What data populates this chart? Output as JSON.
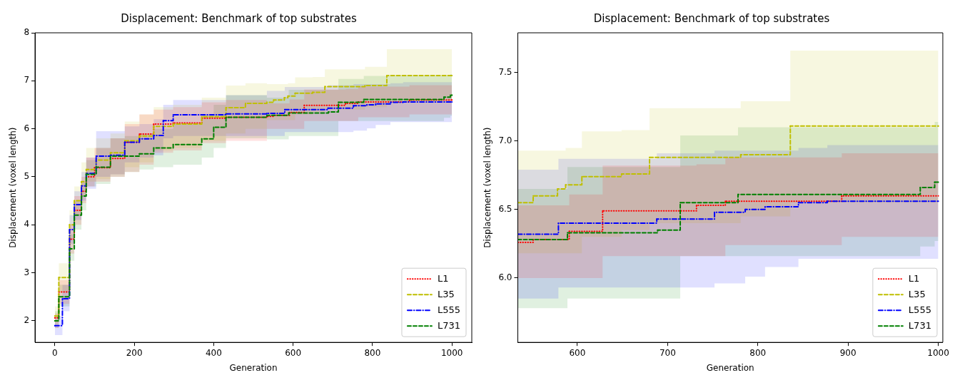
{
  "chart_data": [
    {
      "type": "step",
      "title": "Displacement: Benchmark of top substrates",
      "xlabel": "Generation",
      "ylabel": "Displacement (voxel length)",
      "xlim": [
        -50,
        1050
      ],
      "ylim": [
        1.55,
        8
      ],
      "xticks": [
        0,
        200,
        400,
        600,
        800,
        1000
      ],
      "yticks": [
        2,
        3,
        4,
        5,
        6,
        7,
        8
      ],
      "grid": false,
      "legend": "bottom right",
      "series": [
        {
          "name": "L1",
          "color": "#ff0000",
          "line_style": "dotted",
          "x": [
            0,
            10,
            37,
            49,
            67,
            79,
            100,
            140,
            176,
            213,
            249,
            298,
            370,
            431,
            534,
            551,
            591,
            628,
            732,
            764,
            893,
            1000
          ],
          "values": [
            2.06,
            2.6,
            3.7,
            4.3,
            4.7,
            5.0,
            5.19,
            5.38,
            5.72,
            5.89,
            6.1,
            6.12,
            6.22,
            6.24,
            6.26,
            6.28,
            6.34,
            6.49,
            6.53,
            6.56,
            6.6,
            6.6
          ],
          "lower": [
            1.85,
            2.35,
            3.4,
            4.0,
            4.45,
            4.8,
            4.9,
            5.0,
            5.1,
            5.25,
            5.5,
            5.55,
            5.7,
            5.75,
            6.0,
            6.0,
            6.0,
            6.16,
            6.16,
            6.24,
            6.3,
            6.3
          ],
          "upper": [
            2.15,
            2.85,
            4.0,
            4.6,
            5.0,
            5.4,
            5.6,
            5.8,
            6.1,
            6.3,
            6.4,
            6.45,
            6.55,
            6.6,
            6.53,
            6.53,
            6.61,
            6.82,
            6.83,
            6.88,
            6.91,
            6.91
          ]
        },
        {
          "name": "L35",
          "color": "#bfbf00",
          "line_style": "dashed",
          "x": [
            0,
            10,
            37,
            49,
            67,
            79,
            104,
            140,
            176,
            213,
            249,
            298,
            370,
            431,
            480,
            534,
            551,
            578,
            587,
            605,
            649,
            680,
            781,
            836,
            1000
          ],
          "values": [
            2.1,
            2.9,
            4.0,
            4.5,
            4.9,
            5.15,
            5.35,
            5.5,
            5.75,
            5.85,
            6.05,
            6.1,
            6.25,
            6.44,
            6.53,
            6.55,
            6.6,
            6.65,
            6.68,
            6.74,
            6.76,
            6.88,
            6.9,
            7.11,
            7.11
          ],
          "lower": [
            1.95,
            2.6,
            3.7,
            4.2,
            4.6,
            4.9,
            4.95,
            5.05,
            5.2,
            5.3,
            5.55,
            5.6,
            5.75,
            5.9,
            6.0,
            6.18,
            6.18,
            6.18,
            6.18,
            6.3,
            6.35,
            6.4,
            6.45,
            6.55,
            6.55
          ],
          "upper": [
            2.3,
            3.2,
            4.3,
            4.8,
            5.3,
            5.6,
            5.8,
            5.9,
            6.15,
            6.3,
            6.45,
            6.5,
            6.65,
            6.9,
            6.95,
            6.93,
            6.93,
            6.93,
            6.95,
            7.07,
            7.08,
            7.24,
            7.29,
            7.66,
            7.66
          ]
        },
        {
          "name": "L555",
          "color": "#0000ff",
          "line_style": "dashdot",
          "x": [
            0,
            19,
            37,
            49,
            67,
            79,
            104,
            140,
            176,
            213,
            249,
            273,
            298,
            431,
            534,
            579,
            688,
            752,
            786,
            808,
            845,
            877,
            1000
          ],
          "values": [
            1.9,
            2.46,
            3.9,
            4.42,
            4.81,
            5.07,
            5.43,
            5.45,
            5.72,
            5.79,
            5.86,
            6.17,
            6.29,
            6.31,
            6.32,
            6.4,
            6.43,
            6.48,
            6.5,
            6.52,
            6.55,
            6.56,
            6.56
          ],
          "lower": [
            1.7,
            2.2,
            3.6,
            4.1,
            4.5,
            4.75,
            5.0,
            5.05,
            5.3,
            5.4,
            5.45,
            5.8,
            5.85,
            5.85,
            5.85,
            5.93,
            5.93,
            5.96,
            6.01,
            6.08,
            6.14,
            6.14,
            6.14
          ],
          "upper": [
            2.1,
            2.75,
            4.2,
            4.7,
            5.1,
            5.4,
            5.95,
            5.95,
            6.05,
            6.1,
            6.2,
            6.5,
            6.6,
            6.7,
            6.79,
            6.87,
            6.91,
            6.93,
            6.93,
            6.93,
            6.95,
            6.97,
            6.97
          ]
        },
        {
          "name": "L731",
          "color": "#008000",
          "line_style": "dashed",
          "x": [
            0,
            10,
            37,
            49,
            67,
            79,
            104,
            140,
            176,
            213,
            249,
            298,
            370,
            400,
            431,
            534,
            589,
            689,
            714,
            778,
            980,
            996,
            1000
          ],
          "values": [
            2.0,
            2.5,
            3.5,
            4.2,
            4.6,
            5.05,
            5.2,
            5.43,
            5.43,
            5.48,
            5.6,
            5.67,
            5.79,
            6.03,
            6.24,
            6.28,
            6.33,
            6.35,
            6.55,
            6.61,
            6.66,
            6.7,
            6.7
          ],
          "lower": [
            1.85,
            2.3,
            3.25,
            3.9,
            4.3,
            4.8,
            4.85,
            5.0,
            5.1,
            5.15,
            5.2,
            5.25,
            5.4,
            5.6,
            5.8,
            5.78,
            5.85,
            5.85,
            6.16,
            6.16,
            6.23,
            6.27,
            6.27
          ],
          "upper": [
            2.2,
            2.75,
            3.8,
            4.5,
            4.9,
            5.35,
            5.6,
            5.8,
            5.85,
            5.9,
            6.0,
            6.1,
            6.3,
            6.5,
            6.7,
            6.65,
            6.81,
            6.81,
            7.04,
            7.1,
            7.1,
            7.14,
            7.14
          ]
        }
      ]
    },
    {
      "type": "step",
      "title": "Displacement: Benchmark of top substrates",
      "xlabel": "Generation",
      "ylabel": "Displacement (voxel length)",
      "xlim": [
        534,
        1005
      ],
      "ylim": [
        5.53,
        7.79
      ],
      "xticks": [
        600,
        700,
        800,
        900,
        1000
      ],
      "yticks": [
        {
          "value": 6,
          "label": "6.0"
        },
        6.5,
        {
          "value": 7,
          "label": "7.0"
        },
        7.5
      ],
      "grid": false,
      "legend": "bottom right",
      "series": [
        {
          "name": "L1",
          "color": "#ff0000",
          "line_style": "dotted",
          "x": [
            534,
            551,
            591,
            628,
            732,
            764,
            893,
            1000
          ],
          "values": [
            6.26,
            6.28,
            6.34,
            6.49,
            6.53,
            6.56,
            6.6,
            6.6
          ],
          "lower": [
            6.0,
            6.0,
            6.0,
            6.16,
            6.16,
            6.24,
            6.3,
            6.3
          ],
          "upper": [
            6.53,
            6.53,
            6.61,
            6.82,
            6.83,
            6.88,
            6.91,
            6.91
          ]
        },
        {
          "name": "L35",
          "color": "#bfbf00",
          "line_style": "dashed",
          "x": [
            534,
            551,
            578,
            587,
            605,
            649,
            680,
            781,
            836,
            1000
          ],
          "values": [
            6.55,
            6.6,
            6.65,
            6.68,
            6.74,
            6.76,
            6.88,
            6.9,
            7.11,
            7.11
          ],
          "lower": [
            6.18,
            6.18,
            6.18,
            6.18,
            6.3,
            6.35,
            6.4,
            6.45,
            6.55,
            6.55
          ],
          "upper": [
            6.93,
            6.93,
            6.93,
            6.95,
            7.07,
            7.08,
            7.24,
            7.29,
            7.66,
            7.66
          ]
        },
        {
          "name": "L555",
          "color": "#0000ff",
          "line_style": "dashdot",
          "x": [
            534,
            579,
            688,
            752,
            786,
            808,
            845,
            877,
            1000
          ],
          "values": [
            6.32,
            6.4,
            6.43,
            6.48,
            6.5,
            6.52,
            6.55,
            6.56,
            6.56
          ],
          "lower": [
            5.85,
            5.93,
            5.93,
            5.96,
            6.01,
            6.08,
            6.14,
            6.14,
            6.14
          ],
          "upper": [
            6.79,
            6.87,
            6.91,
            6.93,
            6.93,
            6.93,
            6.95,
            6.97,
            6.97
          ]
        },
        {
          "name": "L731",
          "color": "#008000",
          "line_style": "dashed",
          "x": [
            534,
            589,
            689,
            714,
            778,
            980,
            996,
            1000
          ],
          "values": [
            6.28,
            6.33,
            6.35,
            6.55,
            6.61,
            6.66,
            6.7,
            6.7
          ],
          "lower": [
            5.78,
            5.85,
            5.85,
            6.16,
            6.16,
            6.23,
            6.27,
            6.27
          ],
          "upper": [
            6.65,
            6.81,
            6.81,
            7.04,
            7.1,
            7.1,
            7.14,
            7.14
          ]
        }
      ]
    }
  ]
}
